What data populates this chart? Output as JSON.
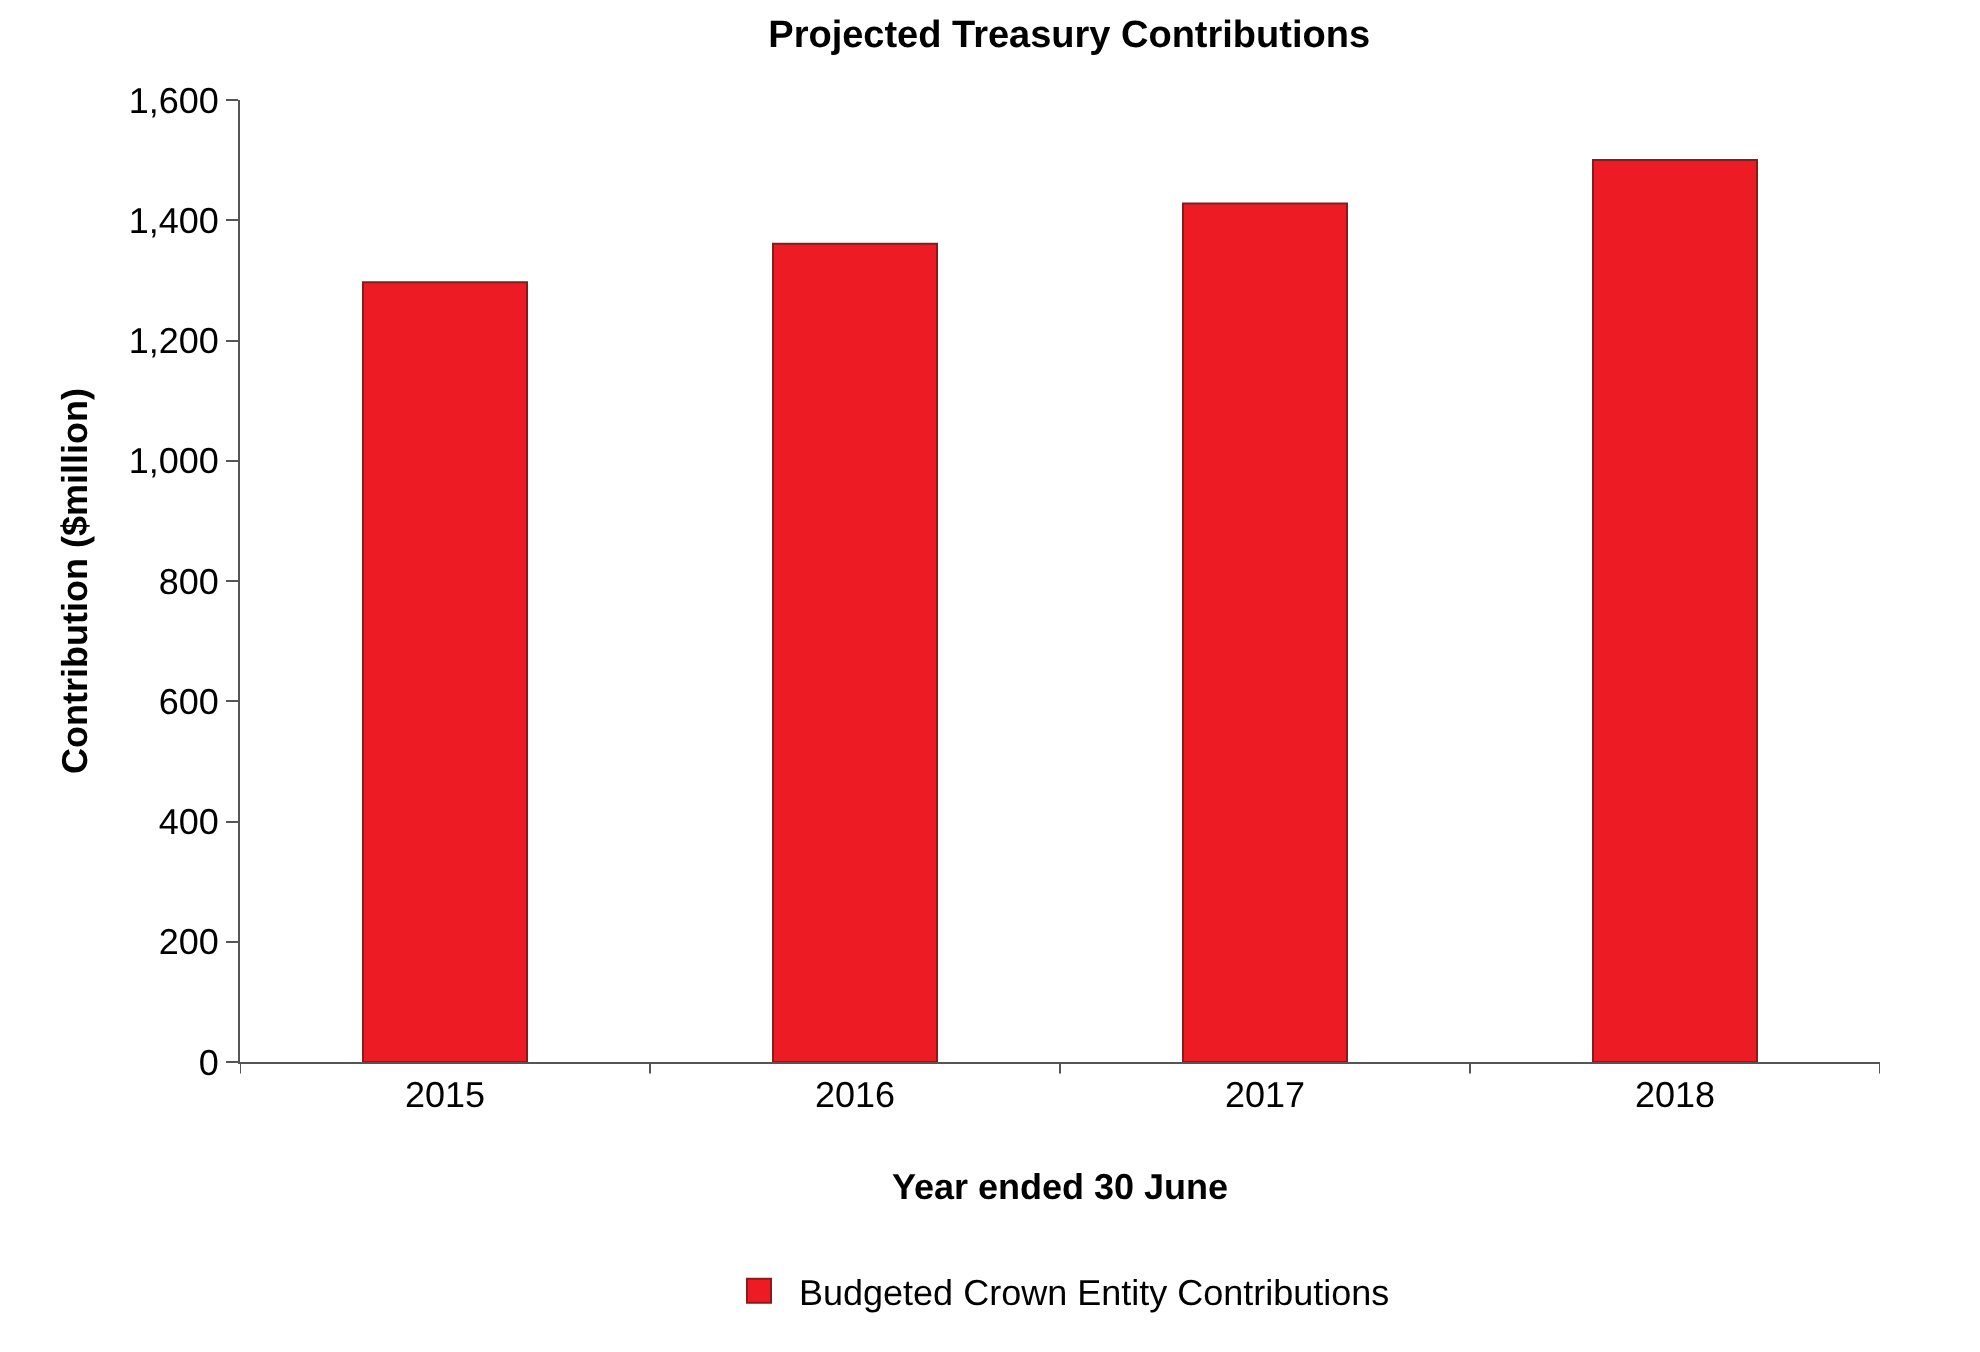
{
  "chart_data": {
    "type": "bar",
    "title": "Projected Treasury Contributions",
    "xlabel": "Year ended 30 June",
    "ylabel": "Contribution ($million)",
    "categories": [
      "2015",
      "2016",
      "2017",
      "2018"
    ],
    "series": [
      {
        "name": "Budgeted Crown Entity Contributions",
        "color": "#ed1c24",
        "values": [
          1297,
          1361,
          1428,
          1500
        ]
      }
    ],
    "ylim": [
      0,
      1600
    ],
    "yticks": [
      0,
      {
        "value": 200,
        "label": "200"
      },
      {
        "value": 400,
        "label": "400"
      },
      {
        "value": 600,
        "label": "600"
      },
      {
        "value": 800,
        "label": "800"
      },
      {
        "value": 1000,
        "label": "1,000"
      },
      {
        "value": 1200,
        "label": "1,200"
      },
      {
        "value": 1400,
        "label": "1,400"
      },
      {
        "value": 1600,
        "label": "1,600"
      }
    ],
    "legend": "bottom"
  }
}
